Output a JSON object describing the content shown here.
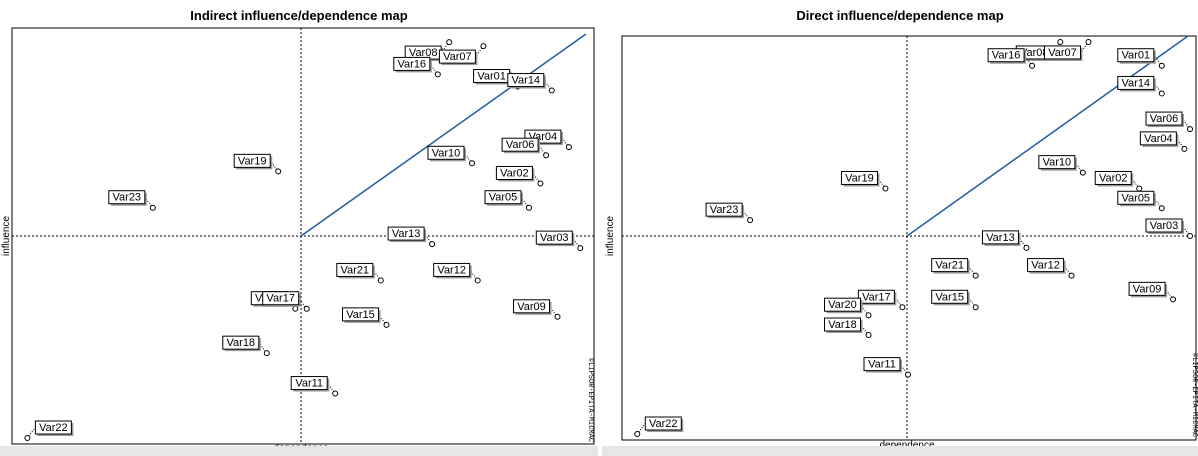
{
  "colors": {
    "diagonal": "#1f5f9f",
    "frame": "#000000",
    "panel_bg": "#ffffff"
  },
  "chart_data": [
    {
      "type": "scatter",
      "title": "Indirect influence/dependence map",
      "xlabel": "dependence",
      "ylabel": "influence",
      "copyright": "©LIPSOR-EPITA-MICMAC",
      "xlim": [
        0,
        100
      ],
      "ylim": [
        0,
        100
      ],
      "dividers": {
        "x": 50,
        "y": 50
      },
      "diagonal": [
        [
          50,
          50
        ],
        [
          100,
          100
        ]
      ],
      "grid": false,
      "points": [
        {
          "name": "Var08",
          "x": 76,
          "y": 98
        },
        {
          "name": "Var07",
          "x": 82,
          "y": 97
        },
        {
          "name": "Var16",
          "x": 74,
          "y": 90
        },
        {
          "name": "Var01",
          "x": 88,
          "y": 87
        },
        {
          "name": "Var14",
          "x": 94,
          "y": 86
        },
        {
          "name": "Var04",
          "x": 97,
          "y": 72
        },
        {
          "name": "Var06",
          "x": 93,
          "y": 70
        },
        {
          "name": "Var10",
          "x": 80,
          "y": 68
        },
        {
          "name": "Var19",
          "x": 46,
          "y": 66
        },
        {
          "name": "Var02",
          "x": 92,
          "y": 63
        },
        {
          "name": "Var23",
          "x": 24,
          "y": 57
        },
        {
          "name": "Var05",
          "x": 90,
          "y": 57
        },
        {
          "name": "Var13",
          "x": 73,
          "y": 48
        },
        {
          "name": "Var03",
          "x": 99,
          "y": 47
        },
        {
          "name": "Var21",
          "x": 64,
          "y": 39
        },
        {
          "name": "Var12",
          "x": 81,
          "y": 39
        },
        {
          "name": "Var20",
          "x": 49,
          "y": 32
        },
        {
          "name": "Var17",
          "x": 51,
          "y": 32
        },
        {
          "name": "Var15",
          "x": 65,
          "y": 28
        },
        {
          "name": "Var09",
          "x": 95,
          "y": 30
        },
        {
          "name": "Var18",
          "x": 44,
          "y": 21
        },
        {
          "name": "Var11",
          "x": 56,
          "y": 11
        },
        {
          "name": "Var22",
          "x": 2,
          "y": 0
        }
      ]
    },
    {
      "type": "scatter",
      "title": "Direct influence/dependence map",
      "xlabel": "dependence",
      "ylabel": "influence",
      "copyright": "©LIPSOR-EPITA-MICMAC",
      "xlim": [
        0,
        100
      ],
      "ylim": [
        0,
        100
      ],
      "dividers": {
        "x": 50,
        "y": 50
      },
      "diagonal": [
        [
          50,
          50
        ],
        [
          100,
          100
        ]
      ],
      "grid": false,
      "points": [
        {
          "name": "Var08",
          "x": 77,
          "y": 99
        },
        {
          "name": "Var07",
          "x": 82,
          "y": 99
        },
        {
          "name": "Var16",
          "x": 72,
          "y": 93
        },
        {
          "name": "Var01",
          "x": 95,
          "y": 93
        },
        {
          "name": "Var14",
          "x": 95,
          "y": 86
        },
        {
          "name": "Var06",
          "x": 100,
          "y": 77
        },
        {
          "name": "Var04",
          "x": 99,
          "y": 72
        },
        {
          "name": "Var10",
          "x": 81,
          "y": 66
        },
        {
          "name": "Var19",
          "x": 46,
          "y": 62
        },
        {
          "name": "Var02",
          "x": 91,
          "y": 62
        },
        {
          "name": "Var05",
          "x": 95,
          "y": 57
        },
        {
          "name": "Var23",
          "x": 22,
          "y": 54
        },
        {
          "name": "Var13",
          "x": 71,
          "y": 47
        },
        {
          "name": "Var03",
          "x": 100,
          "y": 50
        },
        {
          "name": "Var21",
          "x": 62,
          "y": 40
        },
        {
          "name": "Var12",
          "x": 79,
          "y": 40
        },
        {
          "name": "Var17",
          "x": 49,
          "y": 32
        },
        {
          "name": "Var20",
          "x": 43,
          "y": 30
        },
        {
          "name": "Var15",
          "x": 62,
          "y": 32
        },
        {
          "name": "Var09",
          "x": 97,
          "y": 34
        },
        {
          "name": "Var18",
          "x": 43,
          "y": 25
        },
        {
          "name": "Var11",
          "x": 50,
          "y": 15
        },
        {
          "name": "Var22",
          "x": 2,
          "y": 0
        }
      ]
    }
  ]
}
